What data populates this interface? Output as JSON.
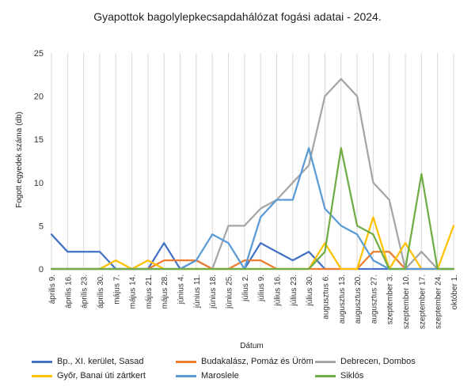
{
  "chart_data": {
    "type": "line",
    "title": "Gyapottok bagolylepkecsapdahálózat fogási adatai - 2024.",
    "xlabel": "Dátum",
    "ylabel": "Fogott egyedek száma (db)",
    "ylim": [
      0,
      25
    ],
    "yticks": [
      0,
      5,
      10,
      15,
      20,
      25
    ],
    "grid": "vertical",
    "legend_position": "bottom",
    "categories": [
      "április 9.",
      "április 16.",
      "április 23.",
      "április 30.",
      "május 7.",
      "május 14.",
      "május 21.",
      "május 28.",
      "június 4.",
      "június 11.",
      "június 18.",
      "június 25.",
      "július 2.",
      "július 9.",
      "július 16.",
      "július 23.",
      "július 30.",
      "augusztus 6.",
      "augusztus 13.",
      "augusztus 20.",
      "augusztus 27.",
      "szeptember 3.",
      "szeptember 10.",
      "szeptember 17.",
      "szeptember 24.",
      "október 1."
    ],
    "series": [
      {
        "name": "Bp., XI. kerület, Sasad",
        "color": "#4472c4",
        "values": [
          4,
          2,
          2,
          2,
          0,
          0,
          0,
          3,
          0,
          1,
          0,
          0,
          0,
          3,
          2,
          1,
          2,
          0,
          0,
          0,
          0,
          0,
          0,
          0,
          0,
          0
        ]
      },
      {
        "name": "Budakalász, Pomáz és Üröm",
        "color": "#ed7d31",
        "values": [
          0,
          0,
          0,
          0,
          0,
          0,
          0,
          1,
          1,
          1,
          0,
          0,
          1,
          1,
          0,
          0,
          0,
          0,
          0,
          0,
          2,
          2,
          0,
          0,
          0,
          0
        ]
      },
      {
        "name": "Debrecen, Dombos",
        "color": "#a5a5a5",
        "values": [
          0,
          0,
          0,
          0,
          0,
          0,
          0,
          0,
          0,
          0,
          0,
          5,
          5,
          7,
          8,
          10,
          12,
          20,
          22,
          20,
          10,
          8,
          0,
          2,
          0,
          0
        ]
      },
      {
        "name": "Győr, Banai úti zártkert",
        "color": "#ffc000",
        "values": [
          0,
          0,
          0,
          0,
          1,
          0,
          1,
          0,
          0,
          0,
          0,
          0,
          0,
          0,
          0,
          0,
          0,
          3,
          0,
          0,
          6,
          0,
          3,
          0,
          0,
          5
        ]
      },
      {
        "name": "Maroslele",
        "color": "#5b9bd5",
        "values": [
          0,
          0,
          0,
          0,
          0,
          0,
          0,
          0,
          0,
          1,
          4,
          3,
          0,
          6,
          8,
          8,
          14,
          7,
          5,
          4,
          1,
          0,
          0,
          0,
          0,
          0
        ]
      },
      {
        "name": "Siklós",
        "color": "#70ad47",
        "values": [
          0,
          0,
          0,
          0,
          0,
          0,
          0,
          0,
          0,
          0,
          0,
          0,
          0,
          0,
          0,
          0,
          0,
          2,
          14,
          5,
          4,
          0,
          0,
          11,
          0,
          0
        ]
      }
    ]
  }
}
